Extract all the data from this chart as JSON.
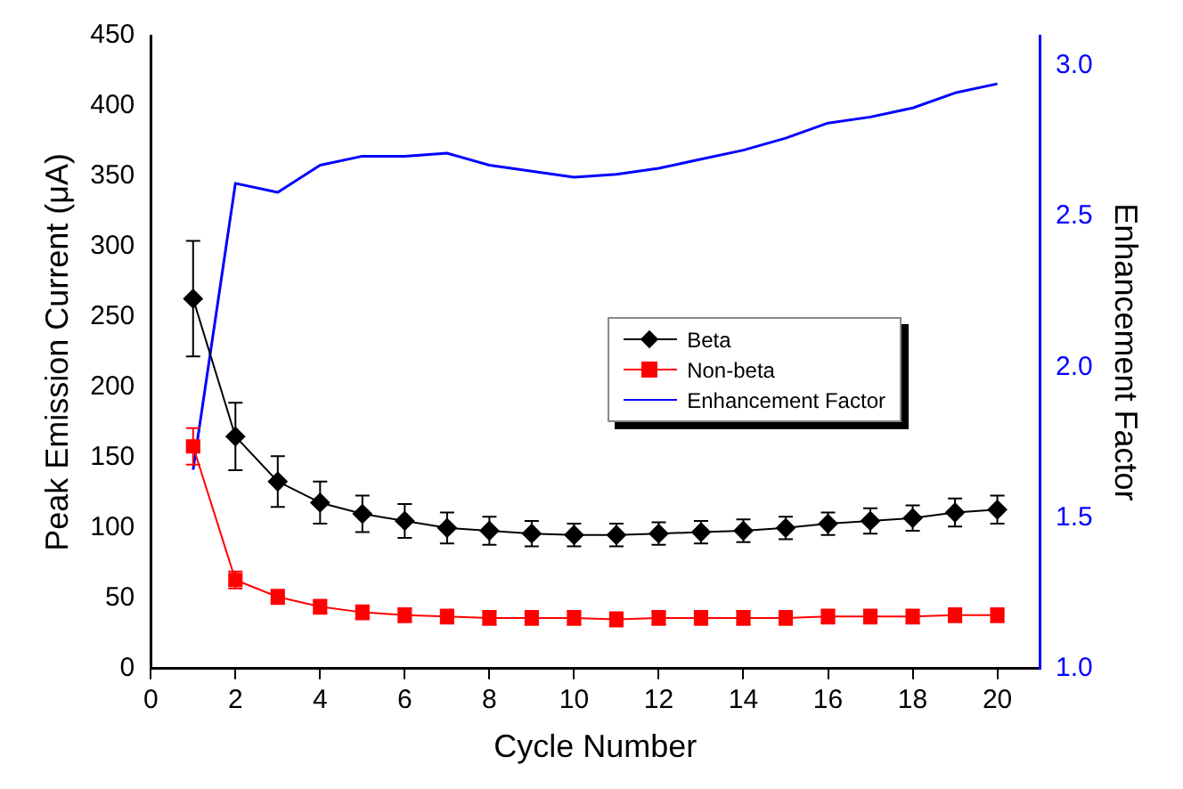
{
  "chart_data": {
    "type": "line",
    "xlabel": "Cycle Number",
    "ylabel": "Peak Emission Current (μA)",
    "y2label": "Enhancement Factor",
    "x": [
      1,
      2,
      3,
      4,
      5,
      6,
      7,
      8,
      9,
      10,
      11,
      12,
      13,
      14,
      15,
      16,
      17,
      18,
      19,
      20
    ],
    "xlim": [
      0,
      21
    ],
    "xticks": [
      0,
      2,
      4,
      6,
      8,
      10,
      12,
      14,
      16,
      18,
      20
    ],
    "ylim": [
      0,
      450
    ],
    "yticks": [
      0,
      50,
      100,
      150,
      200,
      250,
      300,
      350,
      400,
      450
    ],
    "y2lim": [
      1.0,
      3.1
    ],
    "y2ticks": [
      {
        "value": 1.0,
        "label": "1.0"
      },
      {
        "value": 1.5,
        "label": "1.5"
      },
      {
        "value": 2.0,
        "label": "2.0"
      },
      {
        "value": 2.5,
        "label": "2.5"
      },
      {
        "value": 3.0,
        "label": "3.0"
      }
    ],
    "legend": "right",
    "grid": false,
    "line_style": "solid",
    "series": [
      {
        "name": "Beta",
        "color": "#000000",
        "marker": "diamond",
        "values": [
          263,
          165,
          133,
          118,
          110,
          105,
          100,
          98,
          96,
          95,
          95,
          96,
          97,
          98,
          100,
          103,
          105,
          107,
          111,
          113
        ],
        "errors": [
          41,
          24,
          18,
          15,
          13,
          12,
          11,
          10,
          9,
          8,
          8,
          8,
          8,
          8,
          8,
          8,
          9,
          9,
          10,
          10
        ]
      },
      {
        "name": "Non-beta",
        "color": "#ff0000",
        "marker": "square",
        "values": [
          158,
          63,
          51,
          44,
          40,
          38,
          37,
          36,
          36,
          36,
          35,
          36,
          36,
          36,
          36,
          37,
          37,
          37,
          38,
          38
        ],
        "errors": [
          13,
          6,
          5,
          5,
          5,
          5,
          5,
          5,
          5,
          5,
          5,
          5,
          5,
          5,
          5,
          5,
          5,
          5,
          5,
          5
        ]
      },
      {
        "name": "Enhancement Factor",
        "color": "#0000ff",
        "marker": "none",
        "axis": "y2",
        "values": [
          1.66,
          2.61,
          2.58,
          2.67,
          2.7,
          2.7,
          2.71,
          2.67,
          2.65,
          2.63,
          2.64,
          2.66,
          2.69,
          2.72,
          2.76,
          2.81,
          2.83,
          2.86,
          2.91,
          2.94
        ]
      }
    ]
  }
}
